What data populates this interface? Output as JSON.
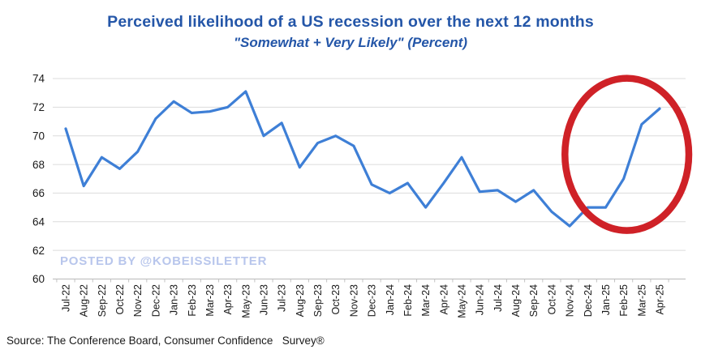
{
  "header": {
    "title": "Perceived likelihood of a US recession over the next 12 months",
    "subtitle": "\"Somewhat + Very Likely\" (Percent)"
  },
  "watermark": {
    "text": "POSTED BY @KOBEISSILETTER"
  },
  "source_note": {
    "text": "Source: The Conference Board, Consumer Confidence   Survey®"
  },
  "chart_data": {
    "type": "line",
    "title": "Perceived likelihood of a US recession over the next 12 months",
    "subtitle": "\"Somewhat + Very Likely\" (Percent)",
    "categories": [
      "Jul-22",
      "Aug-22",
      "Sep-22",
      "Oct-22",
      "Nov-22",
      "Dec-22",
      "Jan-23",
      "Feb-23",
      "Mar-23",
      "Apr-23",
      "May-23",
      "Jun-23",
      "Jul-23",
      "Aug-23",
      "Sep-23",
      "Oct-23",
      "Nov-23",
      "Dec-23",
      "Jan-24",
      "Feb-24",
      "Mar-24",
      "Apr-24",
      "May-24",
      "Jun-24",
      "Jul-24",
      "Aug-24",
      "Sep-24",
      "Oct-24",
      "Nov-24",
      "Dec-24",
      "Jan-25",
      "Feb-25",
      "Mar-25",
      "Apr-25"
    ],
    "series": [
      {
        "name": "Somewhat + Very Likely (%)",
        "values": [
          70.5,
          66.5,
          68.5,
          67.7,
          68.9,
          71.2,
          72.4,
          71.6,
          71.7,
          72.0,
          73.1,
          70.0,
          70.9,
          67.8,
          69.5,
          70.0,
          69.3,
          66.6,
          66.0,
          66.7,
          65.0,
          66.7,
          68.5,
          66.1,
          66.2,
          65.4,
          66.2,
          64.7,
          63.7,
          65.0,
          65.0,
          67.0,
          70.8,
          71.9
        ]
      }
    ],
    "xlabel": "",
    "ylabel": "",
    "ylim": [
      60,
      74
    ],
    "y_ticks": [
      74,
      72,
      70,
      68,
      66,
      64,
      62,
      60
    ],
    "grid": true,
    "legend": "none",
    "line_color": "#3E7FD6",
    "annotation": {
      "shape": "ellipse",
      "highlight_from": "Dec-24",
      "highlight_to": "Apr-25",
      "color": "#CF2127"
    }
  },
  "colors": {
    "title_blue": "#2456A8",
    "line_blue": "#3E7FD6",
    "annotation_red": "#CF2127",
    "watermark_blue": "#B8C6EC",
    "gridline": "#DCDCDC",
    "axis": "#C2C2C2",
    "tick_text": "#1a1a1a"
  }
}
